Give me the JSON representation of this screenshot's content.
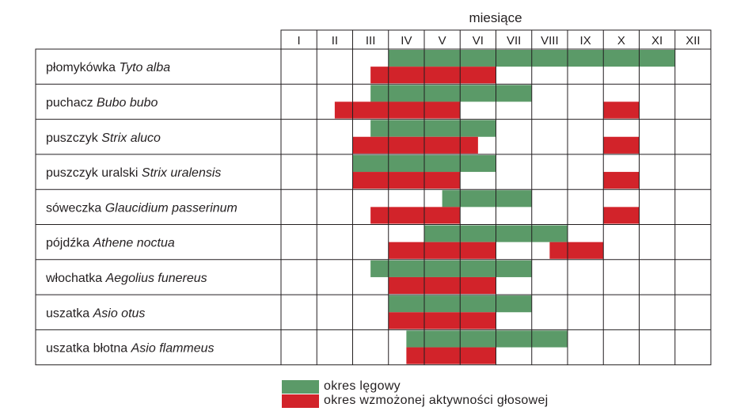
{
  "chart_data": {
    "type": "gantt",
    "xlabel": "miesiące",
    "months": [
      "I",
      "II",
      "III",
      "IV",
      "V",
      "VI",
      "VII",
      "VIII",
      "IX",
      "X",
      "XI",
      "XII"
    ],
    "legend": [
      {
        "key": "breeding",
        "label": "okres lęgowy",
        "color": "#5b9a68"
      },
      {
        "key": "vocal",
        "label": "okres wzmożonej aktywności głosowej",
        "color": "#d2232a"
      }
    ],
    "species": [
      {
        "common": "płomykówka",
        "latin": "Tyto alba",
        "breeding": [
          [
            3,
            11
          ]
        ],
        "vocal": [
          [
            2.5,
            6
          ]
        ]
      },
      {
        "common": "puchacz",
        "latin": "Bubo bubo",
        "breeding": [
          [
            2.5,
            7
          ]
        ],
        "vocal": [
          [
            1.5,
            5
          ],
          [
            9,
            10
          ]
        ]
      },
      {
        "common": "puszczyk",
        "latin": "Strix aluco",
        "breeding": [
          [
            2.5,
            6
          ]
        ],
        "vocal": [
          [
            2,
            5.5
          ],
          [
            9,
            10
          ]
        ]
      },
      {
        "common": "puszczyk uralski",
        "latin": "Strix uralensis",
        "breeding": [
          [
            2,
            6
          ]
        ],
        "vocal": [
          [
            2,
            5
          ],
          [
            9,
            10
          ]
        ]
      },
      {
        "common": "sóweczka",
        "latin": "Glaucidium passerinum",
        "breeding": [
          [
            4.5,
            7
          ]
        ],
        "vocal": [
          [
            2.5,
            5
          ],
          [
            9,
            10
          ]
        ]
      },
      {
        "common": "pójdźka",
        "latin": "Athene noctua",
        "breeding": [
          [
            4,
            8
          ]
        ],
        "vocal": [
          [
            3,
            6
          ],
          [
            7.5,
            9
          ]
        ]
      },
      {
        "common": "włochatka",
        "latin": "Aegolius funereus",
        "breeding": [
          [
            2.5,
            7
          ]
        ],
        "vocal": [
          [
            3,
            6
          ]
        ]
      },
      {
        "common": "uszatka",
        "latin": "Asio otus",
        "breeding": [
          [
            3,
            7
          ]
        ],
        "vocal": [
          [
            3,
            6
          ]
        ]
      },
      {
        "common": "uszatka błotna",
        "latin": "Asio flammeus",
        "breeding": [
          [
            3.5,
            8
          ]
        ],
        "vocal": [
          [
            3.5,
            6
          ]
        ]
      }
    ]
  }
}
